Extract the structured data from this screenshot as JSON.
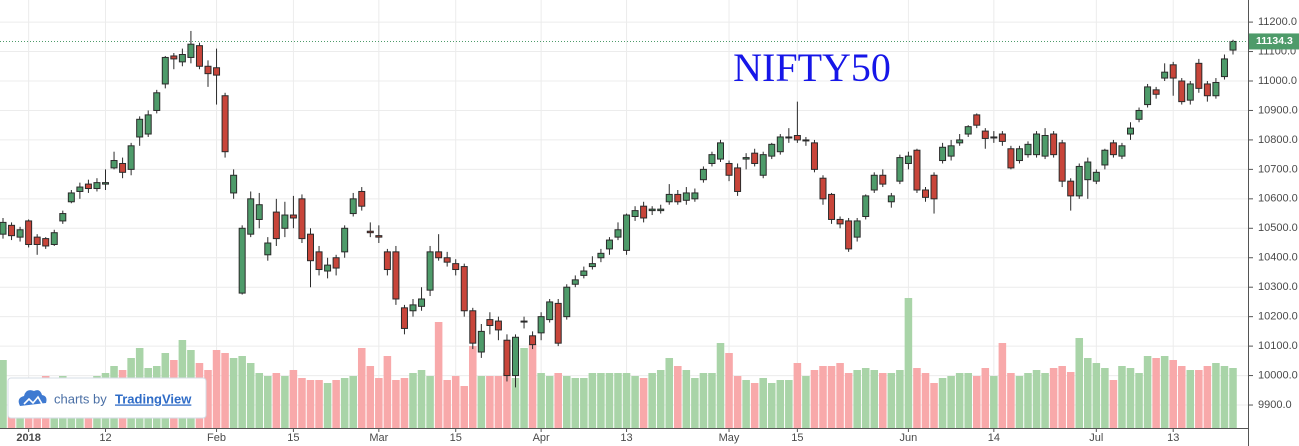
{
  "chart_data": {
    "type": "candlestick",
    "title": "NIFTY50",
    "watermark": {
      "prefix": "charts by",
      "brand": "TradingView"
    },
    "up_color": "#4e9b6a",
    "down_color": "#c8453a",
    "volume_up_color": "#a9d4a8",
    "volume_down_color": "#f8a9aa",
    "grid": true,
    "open": [
      10480,
      10510,
      10470,
      10525,
      10470,
      10465,
      10445,
      10525,
      10590,
      10625,
      10650,
      10635,
      10650,
      10705,
      10720,
      10700,
      10810,
      10820,
      10900,
      10990,
      11085,
      11065,
      11080,
      11120,
      11050,
      11045,
      10950,
      10620,
      10280,
      10480,
      10530,
      10410,
      10555,
      10500,
      10545,
      10600,
      10480,
      10420,
      10355,
      10400,
      10420,
      10550,
      10625,
      10490,
      10475,
      10420,
      10420,
      10230,
      10220,
      10235,
      10290,
      10420,
      10400,
      10380,
      10370,
      10220,
      10080,
      10190,
      10185,
      10120,
      10000,
      10185,
      10135,
      10145,
      10190,
      10245,
      10200,
      10310,
      10340,
      10370,
      10400,
      10430,
      10470,
      10425,
      10540,
      10575,
      10560,
      10560,
      10590,
      10615,
      10595,
      10600,
      10665,
      10720,
      10735,
      10720,
      10705,
      10735,
      10755,
      10680,
      10745,
      10760,
      10810,
      10815,
      10800,
      10790,
      10670,
      10615,
      10530,
      10525,
      10470,
      10540,
      10630,
      10680,
      10590,
      10660,
      10720,
      10765,
      10630,
      10680,
      10730,
      10745,
      10790,
      10820,
      10885,
      10830,
      10810,
      10820,
      10770,
      10730,
      10750,
      10750,
      10745,
      10820,
      10790,
      10660,
      10610,
      10665,
      10660,
      10715,
      10790,
      10745,
      10820,
      10870,
      10920,
      10970,
      11010,
      11055,
      11000,
      10935,
      11060,
      10990,
      10950,
      11015,
      11105
    ],
    "high": [
      10535,
      10520,
      10505,
      10530,
      10480,
      10470,
      10495,
      10560,
      10630,
      10655,
      10665,
      10670,
      10700,
      10760,
      10740,
      10790,
      10880,
      10900,
      10970,
      11085,
      11095,
      11110,
      11170,
      11130,
      11070,
      11110,
      10960,
      10700,
      10510,
      10625,
      10620,
      10470,
      10600,
      10590,
      10610,
      10615,
      10500,
      10440,
      10400,
      10410,
      10510,
      10620,
      10640,
      10520,
      10510,
      10430,
      10440,
      10240,
      10260,
      10300,
      10440,
      10480,
      10420,
      10395,
      10380,
      10230,
      10175,
      10215,
      10200,
      10140,
      10140,
      10200,
      10150,
      10215,
      10260,
      10260,
      10310,
      10340,
      10370,
      10405,
      10430,
      10470,
      10520,
      10550,
      10575,
      10590,
      10575,
      10580,
      10650,
      10630,
      10640,
      10635,
      10710,
      10760,
      10800,
      10730,
      10720,
      10755,
      10770,
      10760,
      10790,
      10820,
      10840,
      10930,
      10810,
      10800,
      10680,
      10620,
      10540,
      10535,
      10535,
      10615,
      10690,
      10700,
      10620,
      10750,
      10760,
      10770,
      10640,
      10690,
      10790,
      10800,
      10820,
      10850,
      10890,
      10840,
      10830,
      10830,
      10780,
      10780,
      10795,
      10830,
      10840,
      10830,
      10800,
      10670,
      10720,
      10740,
      10700,
      10770,
      10800,
      10790,
      10860,
      10910,
      10990,
      10980,
      11060,
      11065,
      11010,
      11000,
      11075,
      11000,
      11010,
      11090,
      11140
    ],
    "low": [
      10465,
      10460,
      10455,
      10435,
      10410,
      10430,
      10440,
      10515,
      10585,
      10600,
      10620,
      10625,
      10630,
      10700,
      10670,
      10680,
      10780,
      10810,
      10890,
      10975,
      11040,
      11050,
      11060,
      11040,
      10980,
      10920,
      10740,
      10600,
      10275,
      10470,
      10500,
      10390,
      10440,
      10470,
      10500,
      10450,
      10300,
      10340,
      10330,
      10340,
      10400,
      10540,
      10560,
      10470,
      10450,
      10340,
      10240,
      10140,
      10200,
      10220,
      10270,
      10390,
      10370,
      10340,
      10200,
      10090,
      10060,
      10140,
      10120,
      9980,
      9960,
      10160,
      10090,
      10120,
      10180,
      10100,
      10190,
      10300,
      10330,
      10360,
      10385,
      10410,
      10460,
      10410,
      10525,
      10520,
      10545,
      10550,
      10580,
      10580,
      10580,
      10590,
      10655,
      10710,
      10725,
      10660,
      10610,
      10700,
      10710,
      10670,
      10735,
      10750,
      10790,
      10790,
      10780,
      10690,
      10580,
      10515,
      10500,
      10420,
      10455,
      10530,
      10620,
      10640,
      10570,
      10650,
      10700,
      10620,
      10590,
      10550,
      10720,
      10730,
      10780,
      10810,
      10840,
      10770,
      10790,
      10780,
      10700,
      10720,
      10740,
      10740,
      10735,
      10740,
      10640,
      10560,
      10600,
      10600,
      10650,
      10700,
      10740,
      10735,
      10800,
      10860,
      10910,
      10940,
      11000,
      10950,
      10920,
      10920,
      10960,
      10930,
      10940,
      11005,
      11090
    ],
    "close": [
      10520,
      10475,
      10495,
      10445,
      10445,
      10440,
      10485,
      10550,
      10620,
      10640,
      10635,
      10655,
      10655,
      10730,
      10690,
      10780,
      10870,
      10885,
      10960,
      11080,
      11075,
      11090,
      11125,
      11050,
      11025,
      11020,
      10760,
      10680,
      10500,
      10600,
      10580,
      10450,
      10465,
      10545,
      10535,
      10465,
      10390,
      10360,
      10375,
      10365,
      10500,
      10600,
      10575,
      10485,
      10470,
      10360,
      10260,
      10160,
      10240,
      10260,
      10420,
      10400,
      10385,
      10360,
      10220,
      10110,
      10150,
      10170,
      10155,
      10000,
      10130,
      10185,
      10105,
      10200,
      10250,
      10110,
      10300,
      10325,
      10355,
      10380,
      10415,
      10460,
      10495,
      10545,
      10560,
      10535,
      10565,
      10565,
      10615,
      10590,
      10620,
      10620,
      10700,
      10750,
      10790,
      10680,
      10625,
      10740,
      10720,
      10750,
      10785,
      10810,
      10810,
      10800,
      10800,
      10700,
      10600,
      10530,
      10515,
      10430,
      10525,
      10610,
      10680,
      10650,
      10610,
      10740,
      10745,
      10630,
      10605,
      10600,
      10775,
      10780,
      10800,
      10845,
      10850,
      10805,
      10810,
      10795,
      10705,
      10770,
      10785,
      10820,
      10815,
      10750,
      10660,
      10610,
      10710,
      10725,
      10690,
      10765,
      10750,
      10780,
      10840,
      10900,
      10980,
      10955,
      11030,
      11010,
      10930,
      10990,
      10975,
      10950,
      10995,
      11075,
      11134.3
    ],
    "volume": [
      68,
      45,
      45,
      48,
      50,
      52,
      48,
      52,
      50,
      50,
      48,
      52,
      55,
      62,
      58,
      70,
      80,
      60,
      62,
      75,
      68,
      88,
      78,
      65,
      58,
      78,
      75,
      70,
      72,
      65,
      55,
      52,
      55,
      52,
      58,
      50,
      48,
      48,
      45,
      48,
      50,
      52,
      80,
      62,
      50,
      72,
      48,
      50,
      55,
      58,
      52,
      106,
      48,
      52,
      42,
      82,
      52,
      52,
      52,
      55,
      50,
      80,
      84,
      55,
      52,
      55,
      52,
      50,
      50,
      55,
      55,
      55,
      55,
      55,
      52,
      50,
      55,
      58,
      70,
      62,
      58,
      50,
      55,
      55,
      85,
      75,
      52,
      48,
      45,
      50,
      45,
      48,
      48,
      65,
      52,
      58,
      62,
      62,
      65,
      55,
      58,
      60,
      58,
      55,
      55,
      58,
      130,
      60,
      55,
      45,
      50,
      52,
      55,
      55,
      52,
      60,
      52,
      85,
      55,
      52,
      55,
      58,
      55,
      60,
      62,
      56,
      90,
      70,
      65,
      60,
      48,
      62,
      60,
      55,
      72,
      70,
      72,
      68,
      62,
      58,
      58,
      62,
      65,
      62,
      60
    ],
    "ylim": [
      9822,
      11275
    ],
    "yticks": [
      {
        "value": 9900,
        "label": "9900.0"
      },
      {
        "value": 10000,
        "label": "10000.0"
      },
      {
        "value": 10100,
        "label": "10100.0"
      },
      {
        "value": 10200,
        "label": "10200.0"
      },
      {
        "value": 10300,
        "label": "10300.0"
      },
      {
        "value": 10400,
        "label": "10400.0"
      },
      {
        "value": 10500,
        "label": "10500.0"
      },
      {
        "value": 10600,
        "label": "10600.0"
      },
      {
        "value": 10700,
        "label": "10700.0"
      },
      {
        "value": 10800,
        "label": "10800.0"
      },
      {
        "value": 10900,
        "label": "10900.0"
      },
      {
        "value": 11000,
        "label": "11000.0"
      },
      {
        "value": 11100,
        "label": "11100.0"
      },
      {
        "value": 11200,
        "label": "11200.0"
      }
    ],
    "xticks": [
      {
        "value": 3,
        "label": "2018"
      },
      {
        "value": 12,
        "label": "12"
      },
      {
        "value": 25,
        "label": "Feb"
      },
      {
        "value": 34,
        "label": "15"
      },
      {
        "value": 44,
        "label": "Mar"
      },
      {
        "value": 53,
        "label": "15"
      },
      {
        "value": 63,
        "label": "Apr"
      },
      {
        "value": 73,
        "label": "13"
      },
      {
        "value": 85,
        "label": "May"
      },
      {
        "value": 93,
        "label": "15"
      },
      {
        "value": 106,
        "label": "Jun"
      },
      {
        "value": 116,
        "label": "14"
      },
      {
        "value": 128,
        "label": "Jul"
      },
      {
        "value": 137,
        "label": "13"
      }
    ]
  }
}
